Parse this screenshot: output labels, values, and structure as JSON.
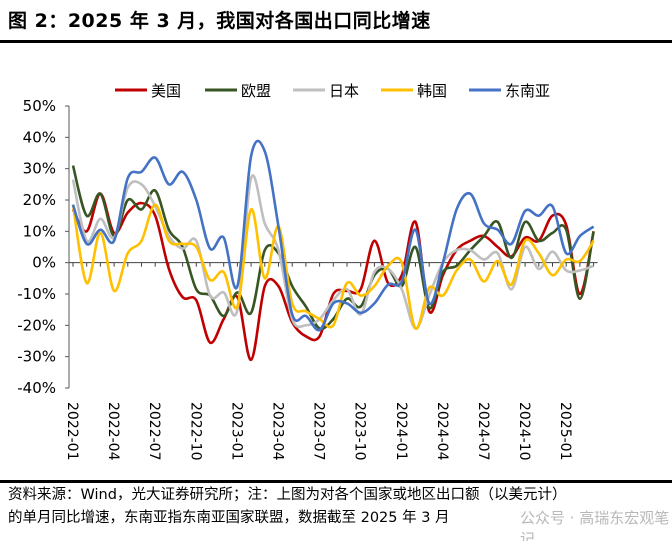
{
  "title": "图 2：2025 年 3 月，我国对各国出口同比增速",
  "note_line1": "资料来源：Wind，光大证券研究所；注：上图为对各个国家或地区出口额（以美元计）",
  "note_line2": "的单月同比增速，东南亚指东南亚国家联盟，数据截至 2025 年 3 月",
  "watermark": "公众号 · 高瑞东宏观笔记",
  "chart_data": {
    "type": "line",
    "title": "",
    "xlabel": "",
    "ylabel": "",
    "ylim": [
      -40,
      50
    ],
    "yticks": [
      "50%",
      "40%",
      "30%",
      "20%",
      "10%",
      "0%",
      "-10%",
      "-20%",
      "-30%",
      "-40%"
    ],
    "x_start": "2022-01",
    "x_end": "2025-03",
    "xtick_labels": [
      "2022-01",
      "2022-04",
      "2022-07",
      "2022-10",
      "2023-01",
      "2023-04",
      "2023-07",
      "2023-10",
      "2024-01",
      "2024-04",
      "2024-07",
      "2024-10",
      "2025-01"
    ],
    "legend_position": "top",
    "grid": false,
    "unit": "%",
    "series": [
      {
        "name": "美国",
        "color": "#c00000",
        "values": [
          17,
          10,
          22,
          9.5,
          16,
          19,
          15,
          -2,
          -11,
          -12,
          -25.5,
          -18,
          -11,
          -31,
          -7.5,
          -7.5,
          -19,
          -23.5,
          -23.5,
          -10,
          -9,
          -8.5,
          7,
          -6.5,
          -4,
          13,
          -15.5,
          -4,
          4,
          7,
          8.5,
          5,
          2,
          8,
          7,
          15,
          12,
          -10,
          10
        ]
      },
      {
        "name": "欧盟",
        "color": "#375623",
        "values": [
          31,
          15,
          22,
          8.5,
          20,
          17,
          23,
          10.5,
          5,
          -8.5,
          -10.5,
          -17,
          -9.5,
          -16,
          4,
          3,
          -7.5,
          -14,
          -21,
          -18,
          -11.5,
          -14,
          -4,
          -2,
          -7.5,
          5,
          -14.5,
          -3,
          -1,
          4,
          8.5,
          13,
          1.5,
          13,
          7,
          9.5,
          10.5,
          -11.5,
          10
        ]
      },
      {
        "name": "日本",
        "color": "#bfbfbf",
        "values": [
          26.5,
          7,
          14,
          8,
          24,
          25,
          18,
          8.5,
          4.5,
          7,
          -10.5,
          -9.5,
          -15,
          27,
          12.5,
          4,
          -18,
          -20,
          -18,
          -12,
          -8.5,
          -16.5,
          -3,
          -2,
          -8.5,
          -21,
          -10.5,
          0,
          4,
          4,
          1,
          3,
          -8.5,
          5,
          -2,
          3.5,
          -2.5,
          -2.5,
          -1
        ]
      },
      {
        "name": "韩国",
        "color": "#ffc000",
        "values": [
          18.5,
          -6.5,
          9.5,
          -9,
          3,
          7,
          18.5,
          7,
          6,
          5,
          -5.5,
          -3,
          -14,
          17,
          -5,
          11.5,
          -13,
          -15.5,
          -18,
          -20,
          -6.5,
          -10.5,
          -7.5,
          -1,
          0,
          -21,
          -8,
          -10.5,
          -2.5,
          1,
          -6,
          0.5,
          -7,
          7,
          3,
          -4,
          1,
          0.5,
          7
        ]
      },
      {
        "name": "东南亚",
        "color": "#4472c4",
        "values": [
          18.5,
          6,
          10.5,
          7,
          27,
          29,
          33.5,
          25,
          29,
          20,
          4.5,
          8,
          -7.5,
          34,
          35.5,
          11.5,
          -16.5,
          -17,
          -21.5,
          -13,
          -13,
          -16,
          -13,
          -7,
          -6,
          10.5,
          -13,
          0,
          17,
          22,
          12.5,
          10.5,
          6,
          16.5,
          15,
          18,
          3,
          8.5,
          11.5
        ]
      }
    ]
  }
}
